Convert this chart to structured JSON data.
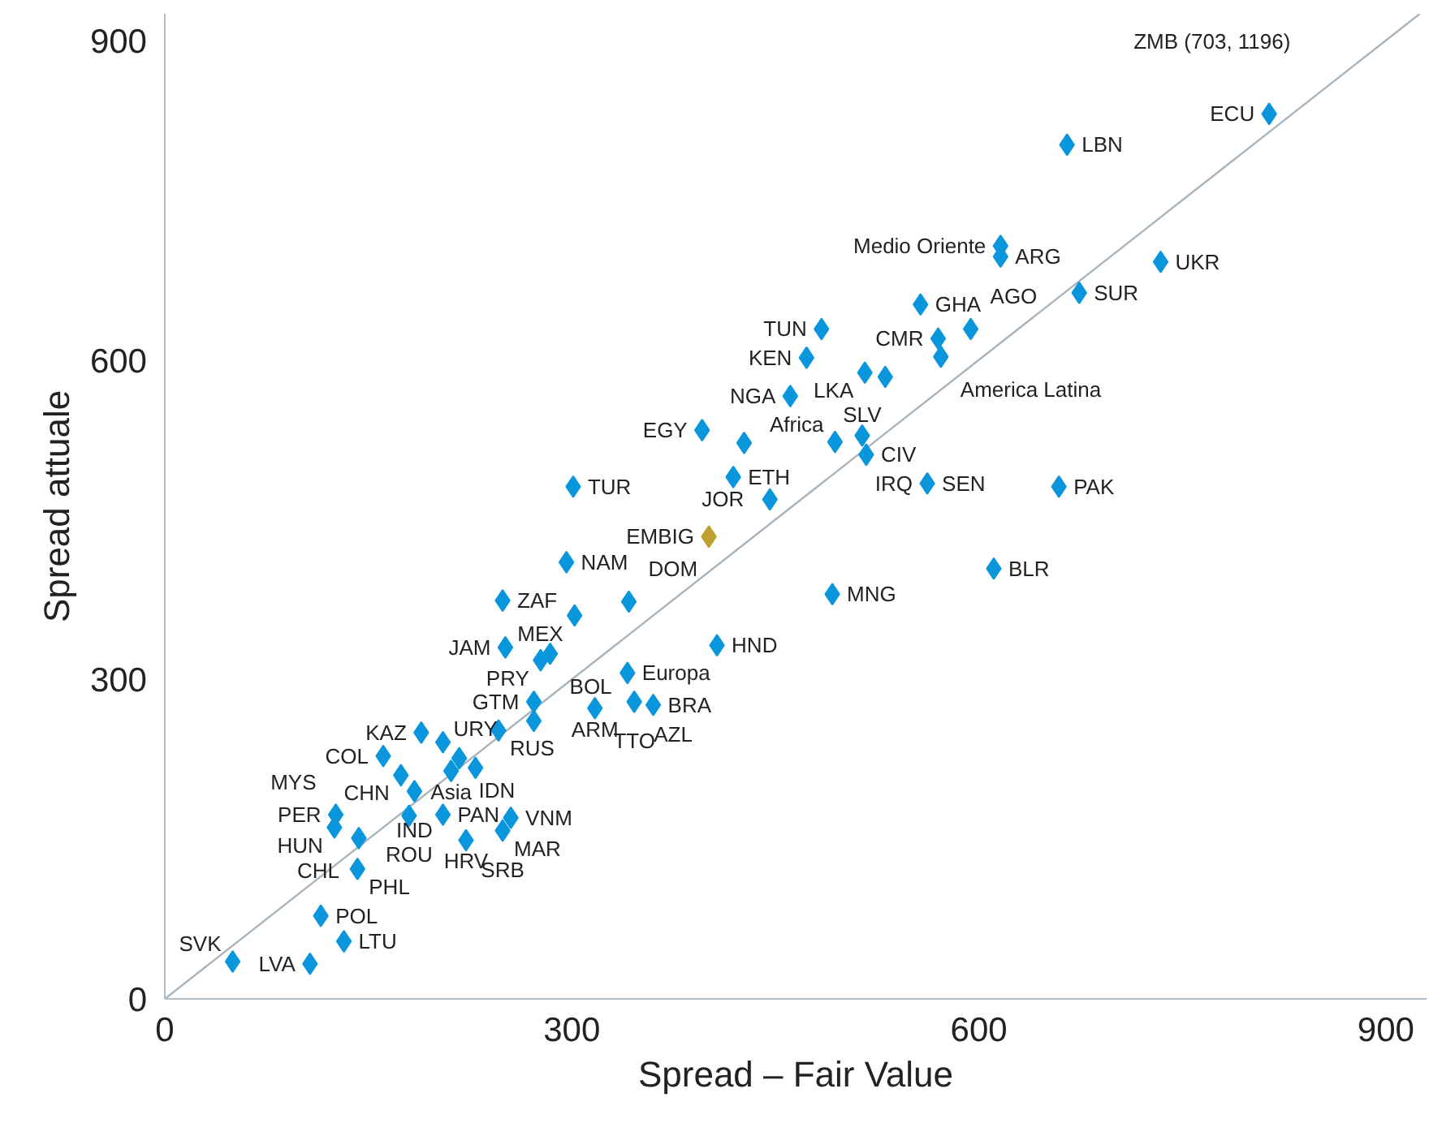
{
  "chart_data": {
    "type": "scatter",
    "xlabel": "Spread – Fair Value",
    "ylabel": "Spread attuale",
    "xlim": [
      0,
      930
    ],
    "ylim": [
      0,
      925
    ],
    "xticks": [
      0,
      300,
      600,
      900
    ],
    "yticks": [
      0,
      300,
      600,
      900
    ],
    "grid": false,
    "marker": "diamond",
    "series": [
      {
        "color": "#0a96dc",
        "x": [
          814,
          665,
          616,
          616,
          734,
          674,
          557,
          594,
          570,
          572,
          484,
          473,
          516,
          531,
          461,
          396,
          427,
          494,
          514,
          517,
          562,
          659,
          611,
          492,
          407,
          419,
          446,
          301,
          296,
          249,
          302,
          342,
          251,
          284,
          277,
          341,
          317,
          346,
          360,
          272,
          272,
          246,
          189,
          205,
          217,
          211,
          229,
          161,
          174,
          184,
          180,
          205,
          126,
          125,
          143,
          222,
          255,
          249,
          142,
          115,
          132,
          107,
          50
        ],
        "values": [
          831,
          802,
          707,
          697,
          692,
          663,
          652,
          629,
          620,
          603,
          629,
          602,
          588,
          584,
          566,
          534,
          522,
          523,
          529,
          511,
          484,
          481,
          404,
          380,
          332,
          490,
          469,
          481,
          410,
          374,
          360,
          373,
          330,
          324,
          318,
          306,
          273,
          279,
          276,
          279,
          261,
          252,
          250,
          241,
          226,
          214,
          217,
          228,
          210,
          195,
          172,
          173,
          173,
          161,
          151,
          149,
          170,
          158,
          122,
          78,
          54,
          33,
          35
        ]
      },
      {
        "color": "#bfa030",
        "x": [
          401
        ],
        "values": [
          434
        ]
      },
      {
        "type": "line",
        "color": "#a9b4bd",
        "line_style": "solid",
        "marker": "none",
        "x": [
          0,
          925
        ],
        "values": [
          0,
          925
        ]
      }
    ],
    "annotations": [
      "ZMB (703, 1196)",
      {
        "text": "ECU",
        "x": 814,
        "y": 831
      },
      {
        "text": "LBN",
        "x": 665,
        "y": 802
      },
      {
        "text": "Medio Oriente",
        "x": 616,
        "y": 707
      },
      {
        "text": "ARG",
        "x": 616,
        "y": 697
      },
      {
        "text": "UKR",
        "x": 734,
        "y": 692
      },
      {
        "text": "SUR",
        "x": 674,
        "y": 663
      },
      {
        "text": "GHA",
        "x": 557,
        "y": 652
      },
      {
        "text": "AGO",
        "x": 594,
        "y": 629
      },
      {
        "text": "CMR",
        "x": 570,
        "y": 620
      },
      {
        "text": "America Latina",
        "x": 572,
        "y": 603
      },
      {
        "text": "TUN",
        "x": 484,
        "y": 629
      },
      {
        "text": "KEN",
        "x": 473,
        "y": 602
      },
      {
        "text": "LKA",
        "x": 516,
        "y": 588
      },
      {
        "text": "NGA",
        "x": 461,
        "y": 566
      },
      {
        "text": "EGY",
        "x": 396,
        "y": 534
      },
      {
        "text": "Africa",
        "x": 494,
        "y": 523
      },
      {
        "text": "SLV",
        "x": 514,
        "y": 529
      },
      {
        "text": "CIV",
        "x": 517,
        "y": 511
      },
      {
        "text": "SEN",
        "x": 562,
        "y": 484
      },
      {
        "text": "IRQ",
        "x": 562,
        "y": 484
      },
      {
        "text": "PAK",
        "x": 659,
        "y": 481
      },
      {
        "text": "BLR",
        "x": 611,
        "y": 404
      },
      {
        "text": "MNG",
        "x": 492,
        "y": 380
      },
      {
        "text": "HND",
        "x": 407,
        "y": 332
      },
      {
        "text": "ETH",
        "x": 419,
        "y": 490
      },
      {
        "text": "JOR",
        "x": 446,
        "y": 469
      },
      {
        "text": "EMBIG",
        "x": 401,
        "y": 434
      },
      {
        "text": "TUR",
        "x": 301,
        "y": 481
      },
      {
        "text": "NAM",
        "x": 296,
        "y": 410
      },
      {
        "text": "ZAF",
        "x": 249,
        "y": 374
      },
      {
        "text": "MEX",
        "x": 302,
        "y": 360
      },
      {
        "text": "DOM",
        "x": 342,
        "y": 373
      },
      {
        "text": "JAM",
        "x": 251,
        "y": 330
      },
      {
        "text": "BOL",
        "x": 284,
        "y": 324
      },
      {
        "text": "PRY",
        "x": 277,
        "y": 318
      },
      {
        "text": "Europa",
        "x": 341,
        "y": 306
      },
      {
        "text": "ARM",
        "x": 317,
        "y": 273
      },
      {
        "text": "AZL",
        "x": 346,
        "y": 279
      },
      {
        "text": "BRA",
        "x": 360,
        "y": 276
      },
      {
        "text": "TTO",
        "x": 346,
        "y": 279
      },
      {
        "text": "GTM",
        "x": 272,
        "y": 279
      },
      {
        "text": "RUS",
        "x": 246,
        "y": 252
      },
      {
        "text": "KAZ",
        "x": 189,
        "y": 250
      },
      {
        "text": "IDN",
        "x": 217,
        "y": 226
      },
      {
        "text": "Asia",
        "x": 211,
        "y": 214
      },
      {
        "text": "URY",
        "x": 229,
        "y": 217
      },
      {
        "text": "COL",
        "x": 161,
        "y": 228
      },
      {
        "text": "CHN",
        "x": 174,
        "y": 210
      },
      {
        "text": "IND",
        "x": 184,
        "y": 195
      },
      {
        "text": "ROU",
        "x": 180,
        "y": 172
      },
      {
        "text": "PAN",
        "x": 205,
        "y": 173
      },
      {
        "text": "PER",
        "x": 126,
        "y": 173
      },
      {
        "text": "MYS",
        "x": 126,
        "y": 173
      },
      {
        "text": "HUN",
        "x": 125,
        "y": 161
      },
      {
        "text": "CHL",
        "x": 143,
        "y": 151
      },
      {
        "text": "HRV",
        "x": 222,
        "y": 149
      },
      {
        "text": "VNM",
        "x": 255,
        "y": 170
      },
      {
        "text": "MAR",
        "x": 249,
        "y": 158
      },
      {
        "text": "SRB",
        "x": 249,
        "y": 158
      },
      {
        "text": "PHL",
        "x": 142,
        "y": 122
      },
      {
        "text": "POL",
        "x": 115,
        "y": 78
      },
      {
        "text": "LTU",
        "x": 132,
        "y": 54
      },
      {
        "text": "LVA",
        "x": 107,
        "y": 33
      },
      {
        "text": "SVK",
        "x": 50,
        "y": 35
      }
    ]
  }
}
